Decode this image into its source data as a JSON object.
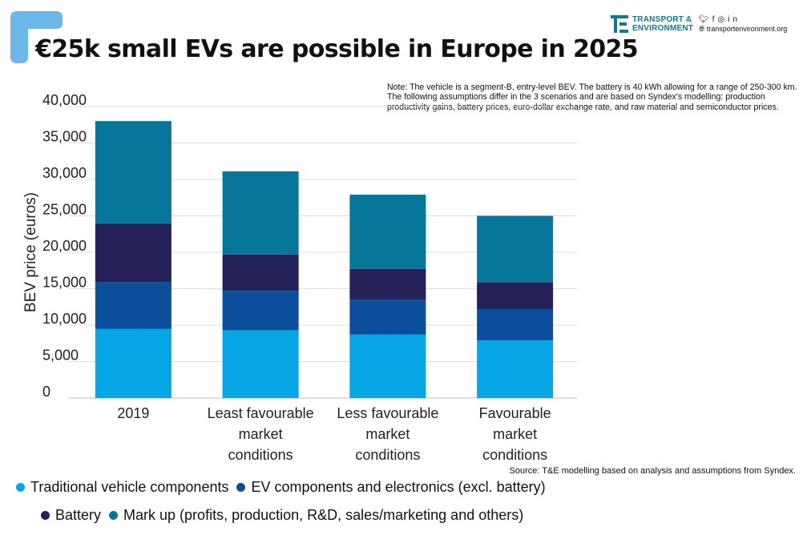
{
  "title": "€25k small EVs are possible in Europe in 2025",
  "logo": {
    "brand_line1": "TRANSPORT &",
    "brand_line2": "ENVIRONMENT",
    "social_icons": [
      "twitter-icon",
      "facebook-icon",
      "instagram-icon",
      "linkedin-icon"
    ],
    "website": "transportenvironment.org"
  },
  "note": "Note: The vehicle is a segment-B, entry-level BEV. The battery is 40 kWh allowing for a range of 250-300 km. The following assumptions differ in the 3 scenarios and are based on Syndex's modelling: production productivity gains, battery prices, euro-dollar exchange rate, and raw material and semiconductor prices.",
  "source": "Source: T&E modelling based on analysis and assumptions from Syndex.",
  "colors": {
    "brand_blue": "#6bb8e8",
    "logo_teal": "#0a7a9b"
  },
  "chart_data": {
    "type": "bar",
    "stacked": true,
    "title": "",
    "xlabel": "",
    "ylabel": "BEV price (euros)",
    "ylim": [
      0,
      40000
    ],
    "yticks": [
      "0",
      "5,000",
      "10,000",
      "15,000",
      "20,000",
      "25,000",
      "30,000",
      "35,000",
      "40,000"
    ],
    "grid": true,
    "legend_position": "bottom",
    "categories": [
      [
        "2019"
      ],
      [
        "Least favourable",
        "market",
        "conditions"
      ],
      [
        "Less favourable",
        "market",
        "conditions"
      ],
      [
        "Favourable",
        "market",
        "conditions"
      ]
    ],
    "series": [
      {
        "name": "Traditional vehicle components",
        "color": "#06a5e6",
        "values": [
          9500,
          9300,
          8700,
          7900
        ]
      },
      {
        "name": "EV components and electronics (excl. battery)",
        "color": "#0a4e9c",
        "values": [
          6400,
          5400,
          4800,
          4300
        ]
      },
      {
        "name": "Battery",
        "color": "#232157",
        "values": [
          8000,
          5000,
          4200,
          3700
        ]
      },
      {
        "name": "Mark up (profits, production, R&D, sales/marketing and others)",
        "color": "#06779a",
        "values": [
          14100,
          11400,
          10200,
          9100
        ]
      }
    ]
  }
}
